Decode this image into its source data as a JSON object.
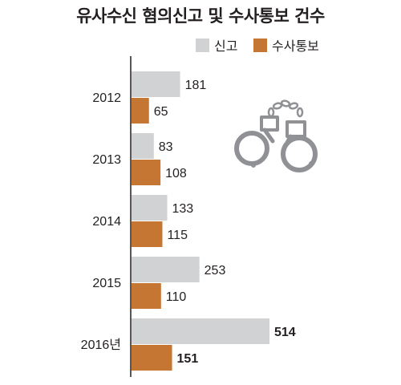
{
  "title": "유사수신 혐의신고 및 수사통보 건수",
  "legend": {
    "report": "신고",
    "notice": "수사통보"
  },
  "colors": {
    "report": "#d1d2d4",
    "notice": "#c57632",
    "axis": "#231f20",
    "icon": "#8f9194"
  },
  "icon": "handcuffs-icon",
  "chart_data": {
    "type": "bar",
    "orientation": "horizontal",
    "categories": [
      "2012",
      "2013",
      "2014",
      "2015",
      "2016년"
    ],
    "series": [
      {
        "name": "신고",
        "values": [
          181,
          83,
          133,
          253,
          514
        ]
      },
      {
        "name": "수사통보",
        "values": [
          65,
          108,
          115,
          110,
          151
        ]
      }
    ],
    "title": "유사수신 혐의신고 및 수사통보 건수",
    "legend_position": "top-right",
    "grid": false,
    "data_labels": true
  }
}
